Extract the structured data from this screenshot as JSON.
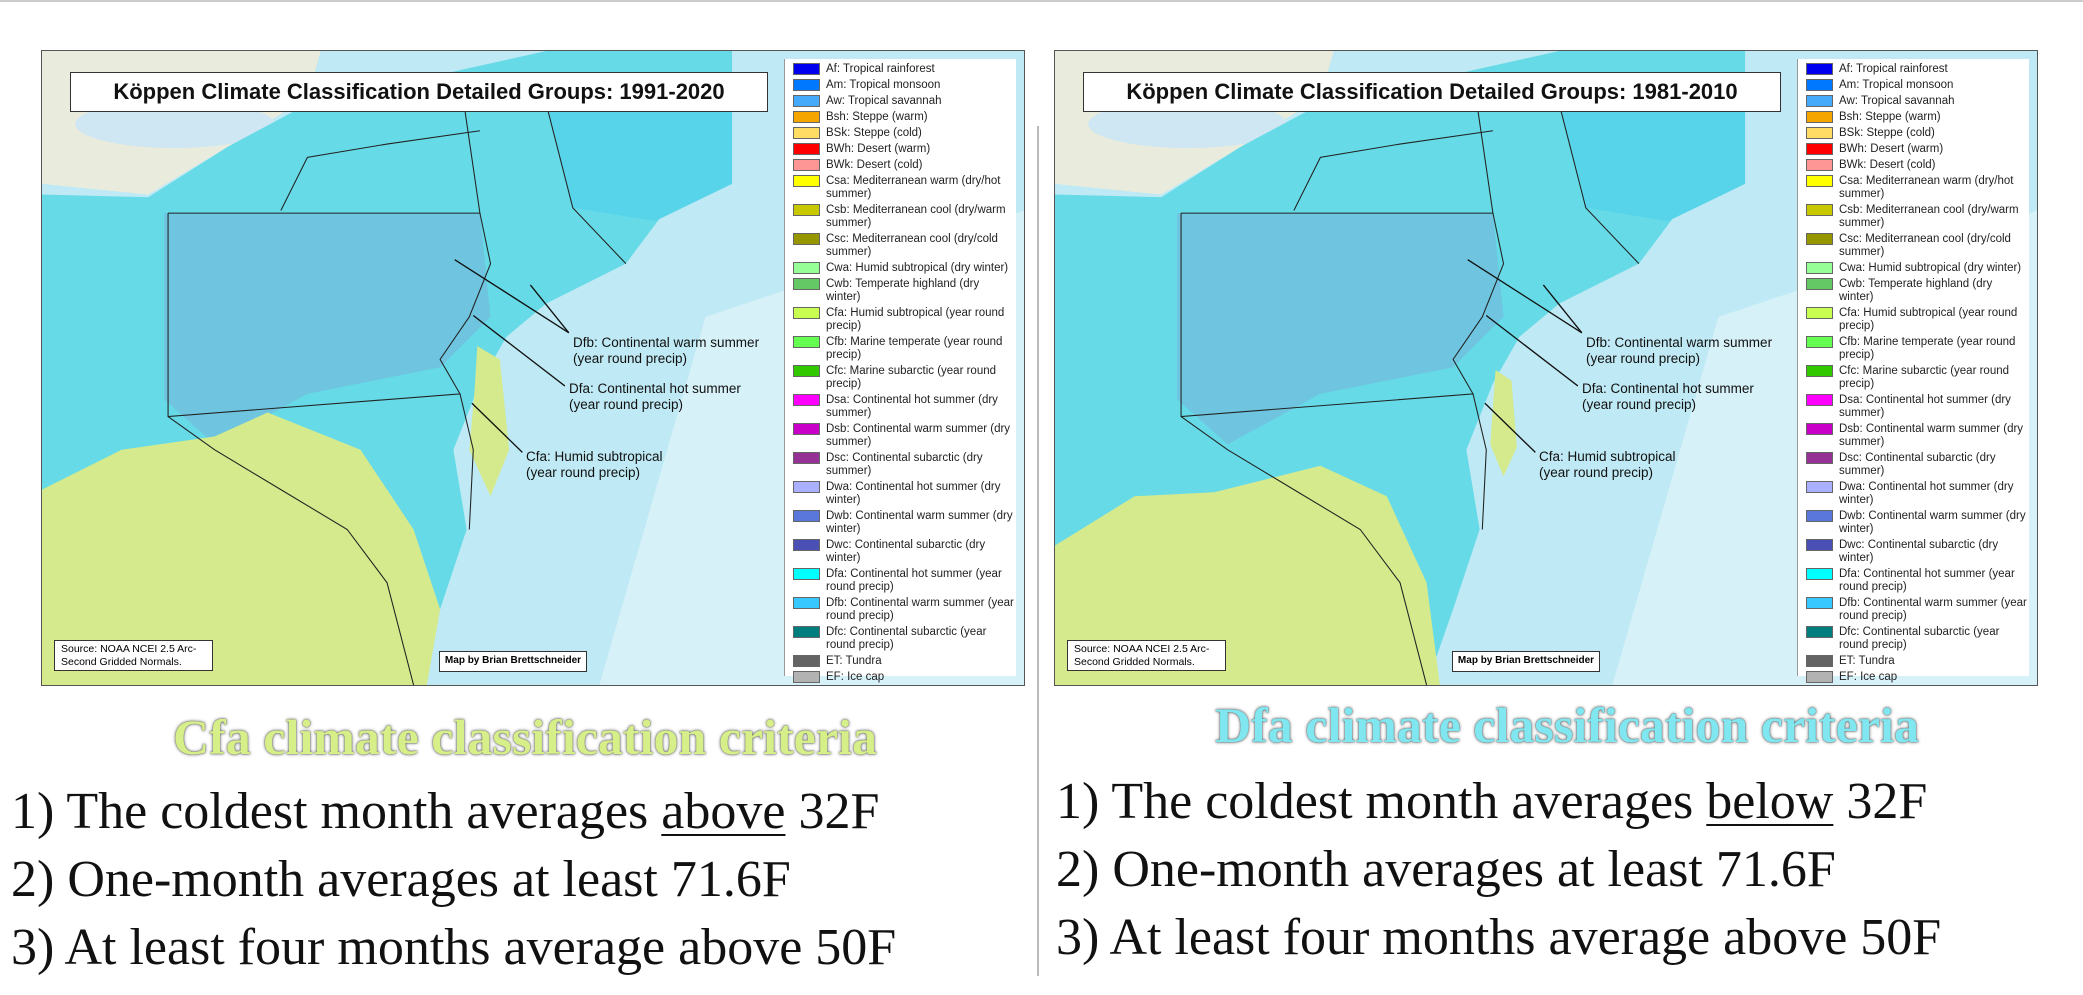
{
  "panels": [
    {
      "map_title": "Köppen Climate Classification Detailed Groups: 1991-2020",
      "legend": [
        {
          "label": "Af: Tropical rainforest",
          "color": "#0000ee"
        },
        {
          "label": "Am: Tropical monsoon",
          "color": "#0078ff"
        },
        {
          "label": "Aw: Tropical savannah",
          "color": "#46aafa"
        },
        {
          "label": "Bsh: Steppe (warm)",
          "color": "#f5a500"
        },
        {
          "label": "BSk: Steppe (cold)",
          "color": "#ffdc64"
        },
        {
          "label": "BWh: Desert (warm)",
          "color": "#ff0000"
        },
        {
          "label": "BWk: Desert (cold)",
          "color": "#ff9696"
        },
        {
          "label": "Csa: Mediterranean warm (dry/hot summer)",
          "color": "#ffff00"
        },
        {
          "label": "Csb: Mediterranean cool (dry/warm summer)",
          "color": "#c8c800"
        },
        {
          "label": "Csc: Mediterranean cool (dry/cold summer)",
          "color": "#969600"
        },
        {
          "label": "Cwa: Humid subtropical (dry winter)",
          "color": "#96ff96"
        },
        {
          "label": "Cwb: Temperate highland (dry winter)",
          "color": "#64c864"
        },
        {
          "label": "Cfa: Humid subtropical (year round precip)",
          "color": "#c8ff50"
        },
        {
          "label": "Cfb: Marine temperate (year round precip)",
          "color": "#64ff50"
        },
        {
          "label": "Cfc: Marine subarctic (year round precip)",
          "color": "#32c800"
        },
        {
          "label": "Dsa: Continental hot summer (dry summer)",
          "color": "#ff00ff"
        },
        {
          "label": "Dsb: Continental warm summer (dry summer)",
          "color": "#c800c8"
        },
        {
          "label": "Dsc: Continental subarctic (dry summer)",
          "color": "#963296"
        },
        {
          "label": "Dwa: Continental hot summer (dry winter)",
          "color": "#aaafff"
        },
        {
          "label": "Dwb: Continental warm summer (dry winter)",
          "color": "#5a78dc"
        },
        {
          "label": "Dwc: Continental subarctic (dry winter)",
          "color": "#4b50b4"
        },
        {
          "label": "Dfa: Continental hot summer (year round precip)",
          "color": "#00ffff"
        },
        {
          "label": "Dfb: Continental warm summer (year round precip)",
          "color": "#37c8ff"
        },
        {
          "label": "Dfc: Continental subarctic (year round precip)",
          "color": "#007d7d"
        },
        {
          "label": "ET: Tundra",
          "color": "#646464"
        },
        {
          "label": "EF: Ice cap",
          "color": "#b2b2b2"
        }
      ],
      "annotations": [
        {
          "lines": [
            "Dfb: Continental warm summer",
            "(year round precip)"
          ]
        },
        {
          "lines": [
            "Dfa: Continental hot summer",
            "(year round precip)"
          ]
        },
        {
          "lines": [
            "Cfa: Humid subtropical",
            "(year round precip)"
          ]
        }
      ],
      "source": "Source: NOAA NCEI 2.5 Arc-Second Gridded Normals.",
      "credit": "Map by Brian Brettschneider",
      "heading": "Cfa climate classification criteria",
      "heading_color": "#d6ef88",
      "criteria": [
        {
          "before": "1) The coldest month averages ",
          "underlined": "above",
          "after": " 32F"
        },
        "2) One-month averages at least 71.6F",
        "3) At least four months average above 50F"
      ]
    },
    {
      "map_title": "Köppen Climate Classification Detailed Groups: 1981-2010",
      "legend": [
        {
          "label": "Af: Tropical rainforest",
          "color": "#0000ee"
        },
        {
          "label": "Am: Tropical monsoon",
          "color": "#0078ff"
        },
        {
          "label": "Aw: Tropical savannah",
          "color": "#46aafa"
        },
        {
          "label": "Bsh: Steppe (warm)",
          "color": "#f5a500"
        },
        {
          "label": "BSk: Steppe (cold)",
          "color": "#ffdc64"
        },
        {
          "label": "BWh: Desert (warm)",
          "color": "#ff0000"
        },
        {
          "label": "BWk: Desert (cold)",
          "color": "#ff9696"
        },
        {
          "label": "Csa: Mediterranean warm (dry/hot summer)",
          "color": "#ffff00"
        },
        {
          "label": "Csb: Mediterranean cool (dry/warm summer)",
          "color": "#c8c800"
        },
        {
          "label": "Csc: Mediterranean cool (dry/cold summer)",
          "color": "#969600"
        },
        {
          "label": "Cwa: Humid subtropical (dry winter)",
          "color": "#96ff96"
        },
        {
          "label": "Cwb: Temperate highland (dry winter)",
          "color": "#64c864"
        },
        {
          "label": "Cfa: Humid subtropical (year round precip)",
          "color": "#c8ff50"
        },
        {
          "label": "Cfb: Marine temperate (year round precip)",
          "color": "#64ff50"
        },
        {
          "label": "Cfc: Marine subarctic (year round precip)",
          "color": "#32c800"
        },
        {
          "label": "Dsa: Continental hot summer (dry summer)",
          "color": "#ff00ff"
        },
        {
          "label": "Dsb: Continental warm summer (dry summer)",
          "color": "#c800c8"
        },
        {
          "label": "Dsc: Continental subarctic (dry summer)",
          "color": "#963296"
        },
        {
          "label": "Dwa: Continental hot summer (dry winter)",
          "color": "#aaafff"
        },
        {
          "label": "Dwb: Continental warm summer (dry winter)",
          "color": "#5a78dc"
        },
        {
          "label": "Dwc: Continental subarctic (dry winter)",
          "color": "#4b50b4"
        },
        {
          "label": "Dfa: Continental hot summer (year round precip)",
          "color": "#00ffff"
        },
        {
          "label": "Dfb: Continental warm summer (year round precip)",
          "color": "#37c8ff"
        },
        {
          "label": "Dfc: Continental subarctic (year round precip)",
          "color": "#007d7d"
        },
        {
          "label": "ET: Tundra",
          "color": "#646464"
        },
        {
          "label": "EF: Ice cap",
          "color": "#b2b2b2"
        }
      ],
      "annotations": [
        {
          "lines": [
            "Dfb: Continental warm summer",
            "(year round precip)"
          ]
        },
        {
          "lines": [
            "Dfa: Continental hot summer",
            "(year round precip)"
          ]
        },
        {
          "lines": [
            "Cfa: Humid subtropical",
            "(year round precip)"
          ]
        }
      ],
      "source": "Source: NOAA NCEI 2.5 Arc-Second Gridded Normals.",
      "credit": "Map by Brian Brettschneider",
      "heading": "Dfa climate classification criteria",
      "heading_color": "#80e6ef",
      "criteria": [
        {
          "before": "1) The coldest month averages ",
          "underlined": "below",
          "after": " 32F"
        },
        "2) One-month averages at least 71.6F",
        "3) At least four months average above 50F"
      ]
    }
  ]
}
